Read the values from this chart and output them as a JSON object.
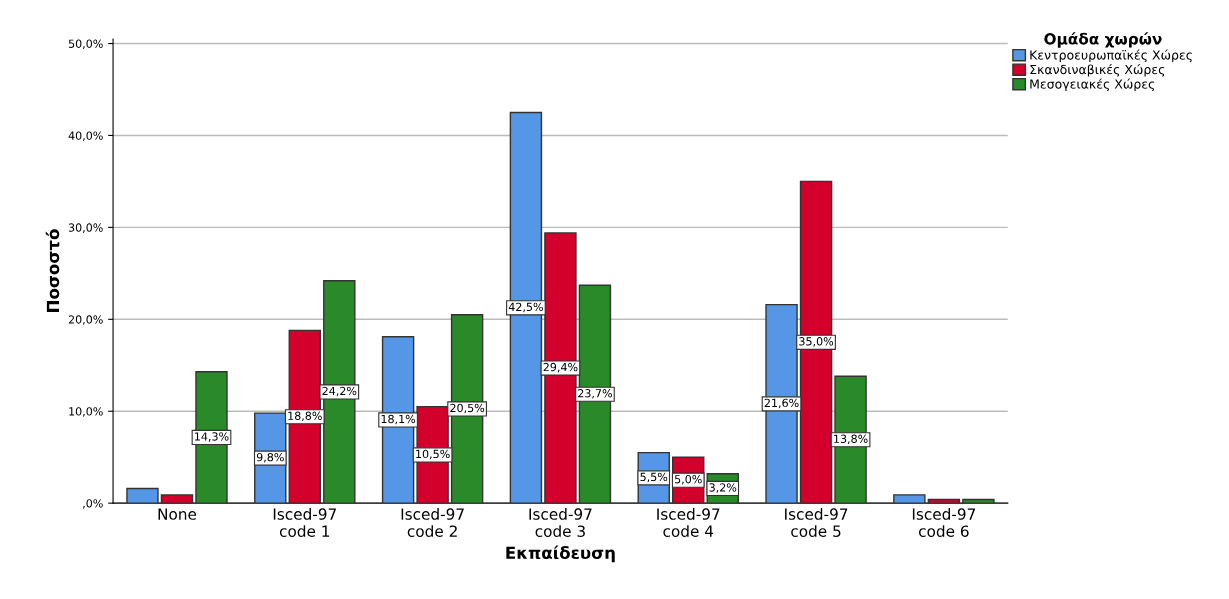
{
  "chart_data": {
    "type": "bar",
    "xlabel": "Εκπαίδευση",
    "ylabel": "Ποσοστό",
    "legend_title": "Ομάδα χωρών",
    "legend": "top right",
    "grid": "y",
    "categories": [
      "None",
      "Isced-97\ncode 1",
      "Isced-97\ncode 2",
      "Isced-97\ncode 3",
      "Isced-97\ncode 4",
      "Isced-97\ncode 5",
      "Isced-97\ncode 6"
    ],
    "series": [
      {
        "name": "Κεντροευρωπαϊκές Χώρες",
        "color": "#5596e6",
        "values": [
          1.6,
          9.8,
          18.1,
          42.5,
          5.5,
          21.6,
          0.9
        ],
        "value_labels": [
          null,
          "9,8%",
          "18,1%",
          "42,5%",
          "5,5%",
          "21,6%",
          null
        ]
      },
      {
        "name": "Σκανδιναβικές Χώρες",
        "color": "#d3002b",
        "values": [
          0.9,
          18.8,
          10.5,
          29.4,
          5.0,
          35.0,
          0.4
        ],
        "value_labels": [
          null,
          "18,8%",
          "10,5%",
          "29,4%",
          "5,0%",
          "35,0%",
          null
        ]
      },
      {
        "name": "Μεσογειακές Χώρες",
        "color": "#2a8a2a",
        "values": [
          14.3,
          24.2,
          20.5,
          23.7,
          3.2,
          13.8,
          0.4
        ],
        "value_labels": [
          "14,3%",
          "24,2%",
          "20,5%",
          "23,7%",
          "3,2%",
          "13,8%",
          null
        ]
      }
    ],
    "ylim": [
      0,
      50.5
    ],
    "yticks": [
      {
        "value": 0,
        "label": ",0%"
      },
      {
        "value": 10,
        "label": "10,0%"
      },
      {
        "value": 20,
        "label": "20,0%"
      },
      {
        "value": 30,
        "label": "30,0%"
      },
      {
        "value": 40,
        "label": "40,0%"
      },
      {
        "value": 50,
        "label": "50,0%"
      }
    ]
  }
}
